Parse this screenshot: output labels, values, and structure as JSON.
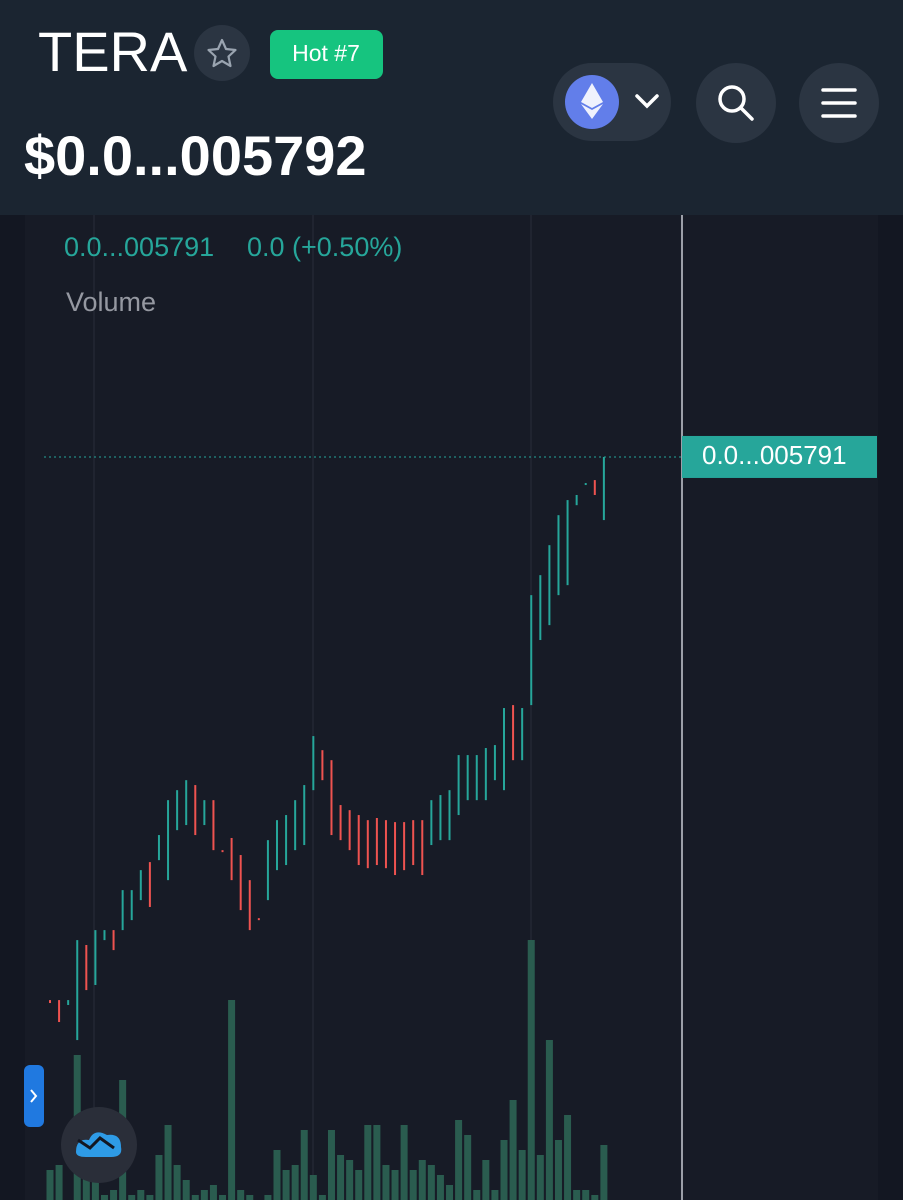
{
  "header": {
    "title": "TERA",
    "badge": "Hot #7",
    "price": "$0.0...005792"
  },
  "chart_data": {
    "type": "candlestick",
    "legend_price": "0.0...005791",
    "legend_change": "0.0 (+0.50%)",
    "volume_label": "Volume",
    "ylim": [
      2000,
      7000
    ],
    "last_price": {
      "value": 5791,
      "label": "0.0...005791"
    },
    "up_color": "#26a69a",
    "down_color": "#ef5350",
    "volume_color": "#2a5c4f",
    "open": [
      3020,
      3020,
      2995,
      2816,
      3301,
      3097,
      3326,
      3377,
      3377,
      3428,
      3530,
      3724,
      3734,
      3632,
      3887,
      3913,
      4117,
      3913,
      4040,
      3785,
      3847,
      3760,
      3632,
      3438,
      3530,
      3683,
      3709,
      3785,
      3811,
      4091,
      4295,
      4244,
      4015,
      3989,
      3964,
      3938,
      3949,
      3938,
      3928,
      3928,
      3938,
      3938,
      3811,
      3836,
      3836,
      3964,
      4040,
      4040,
      4040,
      4142,
      4091,
      4525,
      4244,
      4525,
      4857,
      4933,
      5086,
      5137,
      5545,
      5648,
      5673,
      5469
    ],
    "close": [
      3005,
      2908,
      3020,
      3326,
      3071,
      3377,
      3377,
      3275,
      3581,
      3581,
      3683,
      3495,
      3862,
      4040,
      4091,
      4142,
      3862,
      4040,
      3785,
      3775,
      3632,
      3479,
      3377,
      3428,
      3836,
      3938,
      3964,
      4040,
      4117,
      4367,
      4142,
      3862,
      3836,
      3785,
      3709,
      3693,
      3709,
      3693,
      3658,
      3683,
      3709,
      3658,
      4040,
      4066,
      4091,
      4270,
      4270,
      4270,
      4306,
      4321,
      4510,
      4244,
      4510,
      5086,
      5188,
      5341,
      5494,
      5571,
      5597,
      5658,
      5597,
      5791
    ],
    "y2lim": [
      0,
      300
    ],
    "volume": [
      30,
      35,
      0,
      145,
      25,
      20,
      5,
      10,
      120,
      5,
      10,
      5,
      45,
      75,
      35,
      20,
      5,
      10,
      15,
      5,
      200,
      10,
      5,
      0,
      5,
      50,
      30,
      35,
      70,
      25,
      5,
      70,
      45,
      40,
      30,
      75,
      75,
      35,
      30,
      75,
      30,
      40,
      35,
      25,
      15,
      80,
      65,
      10,
      40,
      10,
      60,
      100,
      50,
      260,
      45,
      160,
      60,
      85,
      10,
      10,
      5,
      55
    ]
  }
}
